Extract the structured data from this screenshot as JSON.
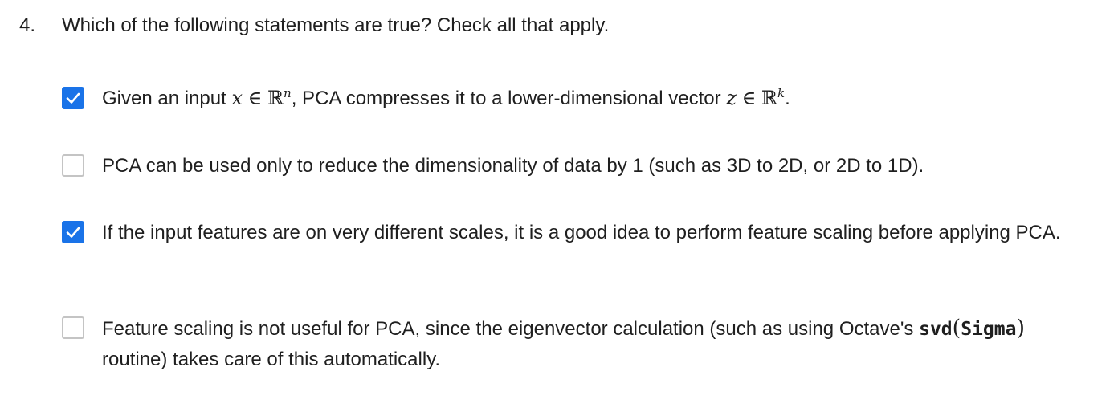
{
  "question": {
    "number": "4.",
    "prompt": "Which of the following statements are true? Check all that apply."
  },
  "options": [
    {
      "checked": true,
      "prefix": "Given an input ",
      "var_x": "x",
      "elem1": "∈",
      "set1": "ℝ",
      "sup1": "n",
      "middle": ", PCA compresses it to a lower-dimensional vector ",
      "var_z": "z",
      "elem2": "∈",
      "set2": "ℝ",
      "sup2": "k",
      "suffix": "."
    },
    {
      "checked": false,
      "text": "PCA can be used only to reduce the dimensionality of data by 1 (such as 3D to 2D, or 2D to 1D)."
    },
    {
      "checked": true,
      "text": "If the input features are on very different scales, it is a good idea to perform feature scaling before applying PCA."
    },
    {
      "checked": false,
      "prefix": "Feature scaling is not useful for PCA, since the eigenvector calculation (such as using Octave's ",
      "code_fn": "svd",
      "paren_open": "(",
      "code_arg": "Sigma",
      "paren_close": ")",
      "suffix": " routine) takes care of this automatically."
    }
  ],
  "colors": {
    "checkbox_checked": "#1a73e8",
    "checkbox_unchecked_border": "#c4c4c4",
    "text": "#1f1f1f"
  },
  "icons": {
    "checked": "checkmark-icon"
  }
}
